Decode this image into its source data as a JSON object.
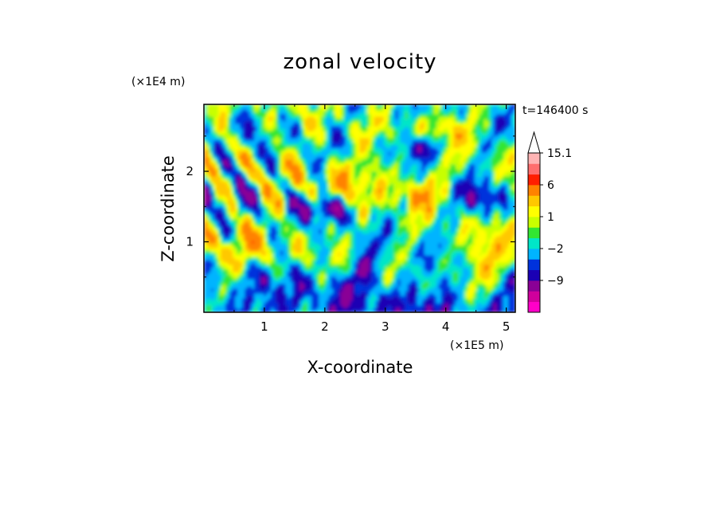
{
  "chart_data": {
    "type": "heatmap",
    "title": "zonal velocity",
    "xlabel": "X-coordinate",
    "ylabel": "Z-coordinate",
    "x_unit": "(×1E5 m)",
    "y_unit": "(×1E4 m)",
    "time_label": "t=146400 s",
    "xlim": [
      0,
      5.15
    ],
    "ylim": [
      0,
      2.95
    ],
    "x_ticks": [
      1,
      2,
      3,
      4,
      5
    ],
    "y_ticks": [
      1,
      2
    ],
    "colorbar": {
      "levels": [
        -15,
        -12,
        -9,
        -6,
        -3,
        -2,
        -1,
        0,
        1,
        2,
        3,
        6,
        9,
        12,
        15.1
      ],
      "labels": [
        {
          "text": "15.1",
          "value": 15.1
        },
        {
          "text": "6",
          "value": 6
        },
        {
          "text": "1",
          "value": 1
        },
        {
          "text": "-2",
          "value": -2
        },
        {
          "text": "-9",
          "value": -9
        }
      ],
      "colors": [
        "#ff00c8",
        "#d0009c",
        "#8a0096",
        "#1a00b4",
        "#0032dc",
        "#00b4ff",
        "#00e6c8",
        "#32e632",
        "#c8ff00",
        "#ffff00",
        "#ffc800",
        "#ff8200",
        "#ff1e00",
        "#ff6e6e",
        "#ffb4b4"
      ],
      "extend": "max"
    }
  }
}
